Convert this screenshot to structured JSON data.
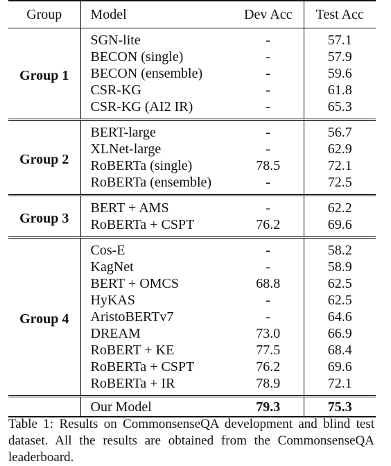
{
  "table": {
    "headers": [
      "Group",
      "Model",
      "Dev Acc",
      "Test Acc"
    ],
    "groups": [
      {
        "label": "Group 1",
        "rows": [
          [
            "SGN-lite",
            "-",
            "57.1"
          ],
          [
            "BECON (single)",
            "-",
            "57.9"
          ],
          [
            "BECON (ensemble)",
            "-",
            "59.6"
          ],
          [
            "CSR-KG",
            "-",
            "61.8"
          ],
          [
            "CSR-KG (AI2 IR)",
            "-",
            "65.3"
          ]
        ]
      },
      {
        "label": "Group 2",
        "rows": [
          [
            "BERT-large",
            "-",
            "56.7"
          ],
          [
            "XLNet-large",
            "-",
            "62.9"
          ],
          [
            "RoBERTa (single)",
            "78.5",
            "72.1"
          ],
          [
            "RoBERTa (ensemble)",
            "-",
            "72.5"
          ]
        ]
      },
      {
        "label": "Group 3",
        "rows": [
          [
            "BERT + AMS",
            "-",
            "62.2"
          ],
          [
            "RoBERTa + CSPT",
            "76.2",
            "69.6"
          ]
        ]
      },
      {
        "label": "Group 4",
        "rows": [
          [
            "Cos-E",
            "-",
            "58.2"
          ],
          [
            "KagNet",
            "-",
            "58.9"
          ],
          [
            "BERT + OMCS",
            "68.8",
            "62.5"
          ],
          [
            "HyKAS",
            "-",
            "62.5"
          ],
          [
            "AristoBERTv7",
            "-",
            "64.6"
          ],
          [
            "DREAM",
            "73.0",
            "66.9"
          ],
          [
            "RoBERT + KE",
            "77.5",
            "68.4"
          ],
          [
            "RoBERTa + CSPT",
            "76.2",
            "69.6"
          ],
          [
            "RoBERTa + IR",
            "78.9",
            "72.1"
          ]
        ]
      }
    ],
    "ours": {
      "model": "Our Model",
      "dev": "79.3",
      "test": "75.3"
    }
  },
  "caption": "Table 1: Results on CommonsenseQA development and blind test dataset. All the results are obtained from the CommonsenseQA leaderboard."
}
